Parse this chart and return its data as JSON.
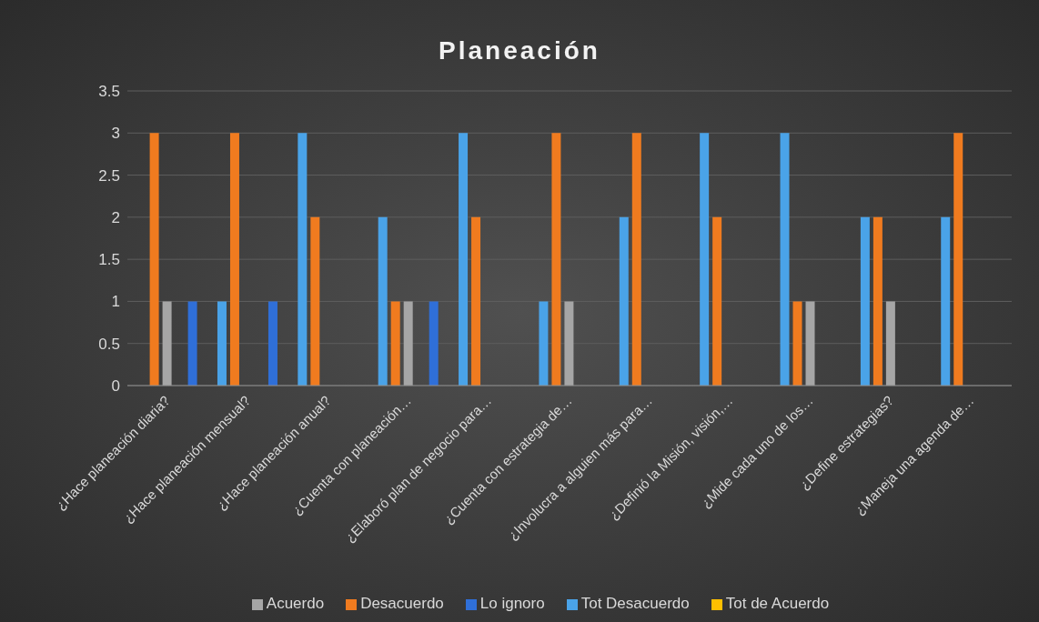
{
  "chart_data": {
    "type": "bar",
    "title": "Planeación",
    "categories": [
      "¿Hace planeación diaria?",
      "¿Hace planeación mensual?",
      "¿Hace planeación anual?",
      "¿Cuenta con planeación…",
      "¿Elaboró plan de negocio para…",
      "¿Cuenta con estrategia de…",
      "¿Involucra a alguien más para…",
      "¿Definió la Misión, visión,…",
      "¿Mide cada uno de los…",
      "¿Define estrategias?",
      "¿Maneja una agenda de…"
    ],
    "series": [
      {
        "name": "Tot Desacuerdo",
        "color": "#4aa3e8",
        "values": [
          0,
          1,
          3,
          2,
          3,
          1,
          2,
          3,
          3,
          2,
          2
        ]
      },
      {
        "name": "Desacuerdo",
        "color": "#f07b1f",
        "values": [
          3,
          3,
          2,
          1,
          2,
          3,
          3,
          2,
          1,
          2,
          3
        ]
      },
      {
        "name": "Acuerdo",
        "color": "#a6a6a6",
        "values": [
          1,
          0,
          0,
          1,
          0,
          1,
          0,
          0,
          1,
          1,
          0
        ]
      },
      {
        "name": "Tot de Acuerdo",
        "color": "#ffc000",
        "values": [
          0,
          0,
          0,
          0,
          0,
          0,
          0,
          0,
          0,
          0,
          0
        ]
      },
      {
        "name": "Lo ignoro",
        "color": "#2f6fd8",
        "values": [
          1,
          1,
          0,
          1,
          0,
          0,
          0,
          0,
          0,
          0,
          0
        ]
      }
    ],
    "ylim": [
      0,
      3.5
    ],
    "yticks": [
      0,
      0.5,
      1,
      1.5,
      2,
      2.5,
      3,
      3.5
    ],
    "grid": "y",
    "legend": "bottom"
  }
}
